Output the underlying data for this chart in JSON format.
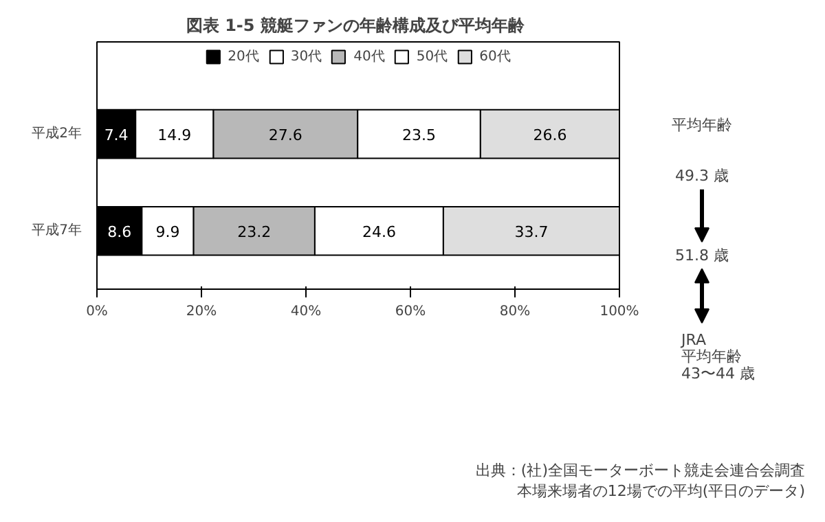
{
  "chart_data": {
    "type": "bar",
    "orientation": "horizontal",
    "stacked": true,
    "title": "図表 1-5  競艇ファンの年齢構成及び平均年齢",
    "categories": [
      "平成2年",
      "平成7年"
    ],
    "series": [
      {
        "name": "20代",
        "color": "#000000",
        "values": [
          7.4,
          8.6
        ]
      },
      {
        "name": "30代",
        "color": "#ffffff",
        "values": [
          14.9,
          9.9
        ]
      },
      {
        "name": "40代",
        "color": "#b8b8b8",
        "values": [
          27.6,
          23.2
        ]
      },
      {
        "name": "50代",
        "color": "#ffffff",
        "values": [
          23.5,
          24.6
        ]
      },
      {
        "name": "60代",
        "color": "#dedede",
        "values": [
          26.6,
          33.7
        ]
      }
    ],
    "xlim": [
      0,
      100
    ],
    "xticks": [
      {
        "value": 0,
        "label": "0%"
      },
      {
        "value": 20,
        "label": "20%"
      },
      {
        "value": 40,
        "label": "40%"
      },
      {
        "value": 60,
        "label": "60%"
      },
      {
        "value": 80,
        "label": "80%"
      },
      {
        "value": 100,
        "label": "100%"
      }
    ],
    "data_labels": true,
    "legend": "top",
    "grid": false,
    "annotations": [
      "平均年齢",
      "49.3 歳",
      "51.8 歳",
      "JRA",
      "平均年齢",
      "43〜44 歳",
      "出典：(社)全国モーターボート競走会連合会調査",
      "本場来場者の12場での平均(平日のデータ)"
    ]
  }
}
